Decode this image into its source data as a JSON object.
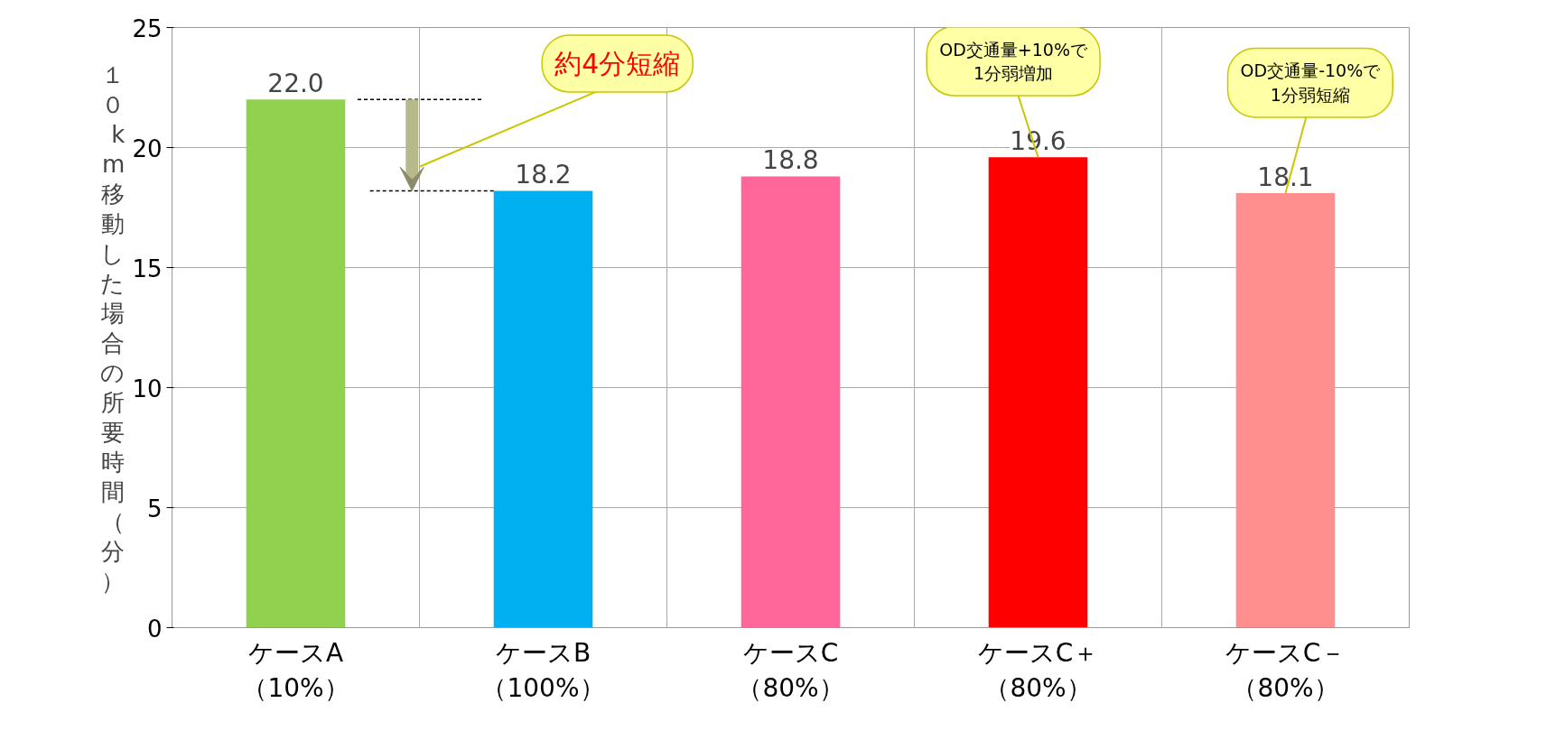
{
  "chart_data": {
    "type": "bar",
    "ylabel": "１０km移動した場合の所要時間（分）",
    "categories": [
      "ケースA（10%）",
      "ケースB（100%）",
      "ケースC（80%）",
      "ケースC＋（80%）",
      "ケースC－（80%）"
    ],
    "values": [
      22.0,
      18.2,
      18.8,
      19.6,
      18.1
    ],
    "colors": [
      "#92d050",
      "#00b0f0",
      "#ff6699",
      "#ff0000",
      "#ff8f8f"
    ],
    "value_labels": [
      "22.0",
      "18.2",
      "18.8",
      "19.6",
      "18.1"
    ],
    "ylim": [
      0,
      25
    ],
    "yticks": [
      0,
      5,
      10,
      15,
      20,
      25
    ],
    "grid": true,
    "annotations": [
      "約4分短縮",
      {
        "text": "OD交通量+10%で\n1分弱増加",
        "x": "ケースC＋（80%）",
        "y": 19.6
      },
      {
        "text": "OD交通量-10%で\n1分弱短縮",
        "x": "ケースC－（80%）",
        "y": 18.1
      }
    ],
    "ref_lines": [
      {
        "axis": "y",
        "value": 22.0,
        "line_style": "dashed",
        "color": "#000000"
      },
      {
        "axis": "y",
        "value": 18.2,
        "line_style": "dashed",
        "color": "#000000"
      }
    ]
  }
}
